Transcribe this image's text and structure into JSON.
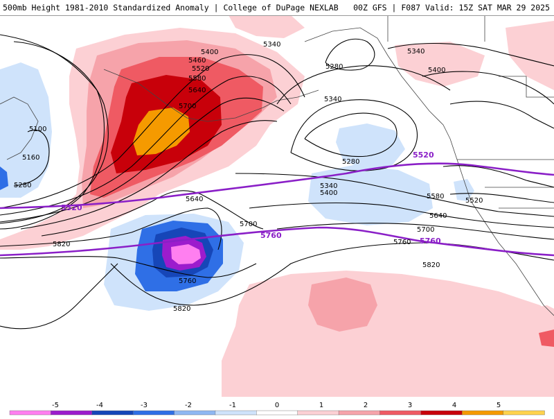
{
  "header": {
    "title": "500mb Height 1981-2010 Standardized Anomaly | College of DuPage NEXLAB",
    "run_info": "00Z GFS | F087 Valid: 15Z SAT MAR 29 2025"
  },
  "legend": {
    "ticks": [
      "-5",
      "-4",
      "-3",
      "-2",
      "-1",
      "0",
      "1",
      "2",
      "3",
      "4",
      "5"
    ],
    "colors": [
      "#ff7ff0",
      "#9c1ccd",
      "#1646b8",
      "#2f6fe6",
      "#8fb7f2",
      "#cfe3fb",
      "#ffffff",
      "#fcd0d4",
      "#f6a3aa",
      "#ef5a63",
      "#c8000a",
      "#f59a00",
      "#ffd24d"
    ]
  },
  "contours": {
    "black": {
      "c5100": "5100",
      "c5160": "5160",
      "c5280w": "5280",
      "c5400a": "5400",
      "c5460": "5460",
      "c5520a": "5520",
      "c5580a": "5580",
      "c5640a": "5640",
      "c5700a": "5700",
      "c5340a": "5340",
      "c5280n": "5280",
      "c5340b": "5340",
      "c5340c": "5340",
      "c5400b": "5400",
      "c5280b": "5280",
      "c5340d": "5340",
      "c5400c": "5400",
      "c5580b": "5580",
      "c5520b": "5520",
      "c5640b": "5640",
      "c5700b": "5700",
      "c5760b": "5760",
      "c5820b": "5820",
      "c5640c": "5640",
      "c5700c": "5700",
      "c5820c": "5820",
      "c5760c": "5760",
      "c5820d": "5820"
    },
    "purple": {
      "p5520a": "5520",
      "p5520b": "5520",
      "p5760a": "5760",
      "p5760b": "5760"
    }
  }
}
